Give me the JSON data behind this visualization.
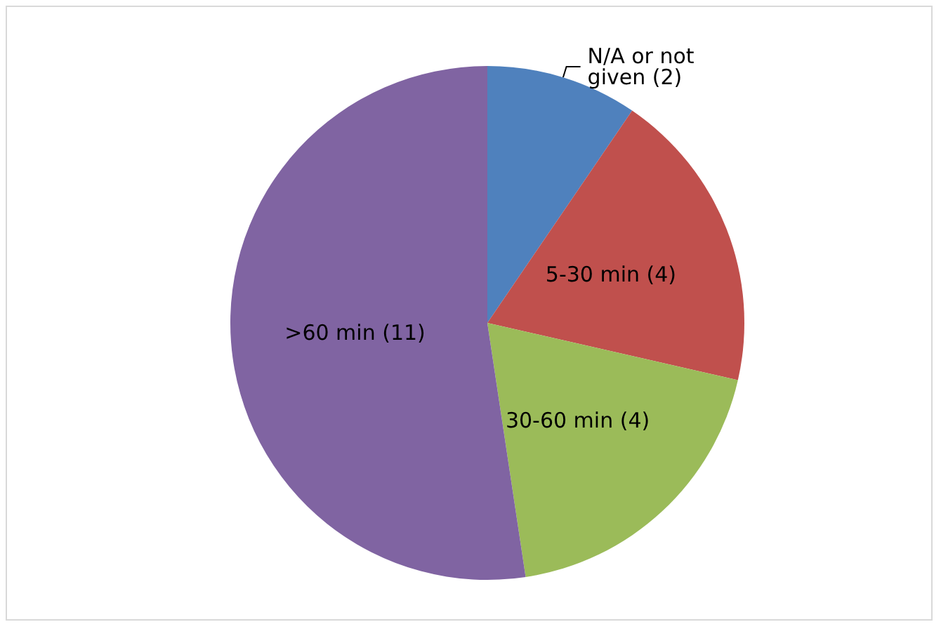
{
  "chart_data": {
    "type": "pie",
    "categories": [
      "N/A or not given",
      "5-30 min",
      "30-60 min",
      ">60 min"
    ],
    "values": [
      2,
      4,
      4,
      11
    ],
    "colors": [
      "#4f81bd",
      "#c0504d",
      "#9bbb59",
      "#8064a2"
    ],
    "value_labels": [
      "(2)",
      "(4)",
      "(4)",
      "(11)"
    ],
    "legend": false
  }
}
